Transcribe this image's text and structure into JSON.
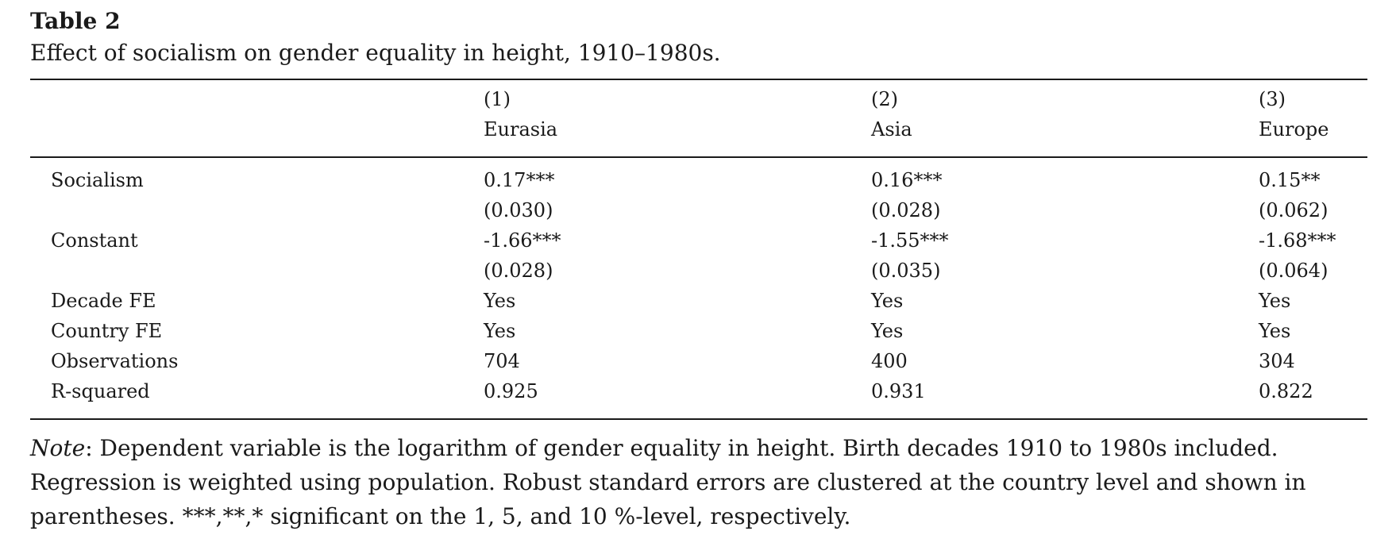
{
  "table": {
    "label": "Table 2",
    "caption": "Effect of socialism on gender equality in height, 1910–1980s.",
    "columns": [
      {
        "number": "(1)",
        "name": "Eurasia"
      },
      {
        "number": "(2)",
        "name": "Asia"
      },
      {
        "number": "(3)",
        "name": "Europe"
      }
    ],
    "rows": [
      {
        "label": "Socialism",
        "values": [
          "0.17***",
          "0.16***",
          "0.15**"
        ]
      },
      {
        "label": "",
        "values": [
          "(0.030)",
          "(0.028)",
          "(0.062)"
        ]
      },
      {
        "label": "Constant",
        "values": [
          "-1.66***",
          "-1.55***",
          "-1.68***"
        ]
      },
      {
        "label": "",
        "values": [
          "(0.028)",
          "(0.035)",
          "(0.064)"
        ]
      },
      {
        "label": "Decade FE",
        "values": [
          "Yes",
          "Yes",
          "Yes"
        ]
      },
      {
        "label": "Country FE",
        "values": [
          "Yes",
          "Yes",
          "Yes"
        ]
      },
      {
        "label": "Observations",
        "values": [
          "704",
          "400",
          "304"
        ]
      },
      {
        "label": "R-squared",
        "values": [
          "0.925",
          "0.931",
          "0.822"
        ]
      }
    ]
  },
  "note": {
    "label": "Note",
    "text": ": Dependent variable is the logarithm of gender equality in height. Birth decades 1910 to 1980s included. Regression is weighted using population. Robust standard errors are clustered at the country level and shown in parentheses. ***,**,* significant on the 1, 5, and 10 %-level, respectively."
  }
}
